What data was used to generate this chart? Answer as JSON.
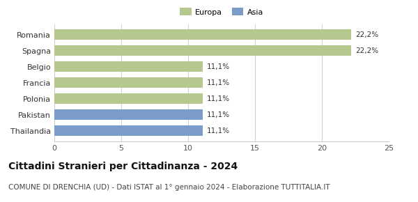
{
  "categories": [
    "Thailandia",
    "Pakistan",
    "Polonia",
    "Francia",
    "Belgio",
    "Spagna",
    "Romania"
  ],
  "values": [
    11.1,
    11.1,
    11.1,
    11.1,
    11.1,
    22.2,
    22.2
  ],
  "colors": [
    "#7b9bc8",
    "#7b9bc8",
    "#b5c98e",
    "#b5c98e",
    "#b5c98e",
    "#b5c98e",
    "#b5c98e"
  ],
  "labels": [
    "11,1%",
    "11,1%",
    "11,1%",
    "11,1%",
    "11,1%",
    "22,2%",
    "22,2%"
  ],
  "legend": [
    {
      "label": "Europa",
      "color": "#b5c98e"
    },
    {
      "label": "Asia",
      "color": "#7b9bc8"
    }
  ],
  "xlim": [
    0,
    25
  ],
  "xticks": [
    0,
    5,
    10,
    15,
    20,
    25
  ],
  "title": "Cittadini Stranieri per Cittadinanza - 2024",
  "subtitle": "COMUNE DI DRENCHIA (UD) - Dati ISTAT al 1° gennaio 2024 - Elaborazione TUTTITALIA.IT",
  "title_fontsize": 10,
  "subtitle_fontsize": 7.5,
  "label_fontsize": 7.5,
  "tick_fontsize": 8,
  "bg_color": "#ffffff",
  "grid_color": "#cccccc"
}
